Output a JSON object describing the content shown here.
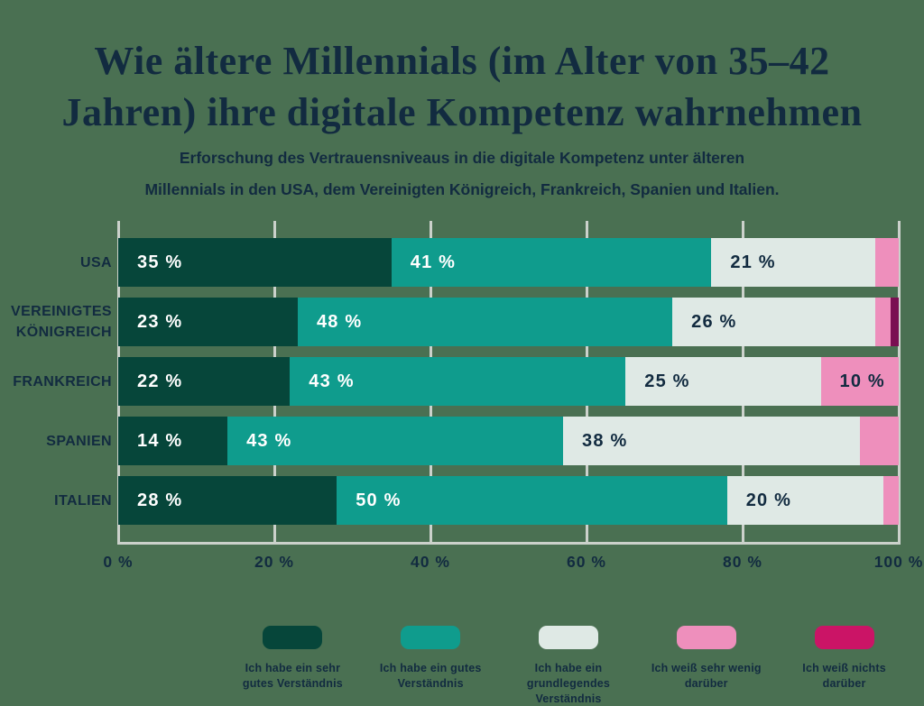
{
  "title": {
    "text": "Wie ältere Millennials (im Alter von 35–42 Jahren) ihre digitale Kompetenz wahrnehmen",
    "lines": [
      "Wie ältere Millennials (im Alter von 35–42",
      "Jahren) ihre digitale Kompetenz wahrnehmen"
    ]
  },
  "subtitle": {
    "text": "Erforschung des Vertrauensniveaus in die digitale Kompetenz unter älteren Millennials in den USA, dem Vereinigten Königreich, Frankreich, Spanien und Italien.",
    "lines": [
      "Erforschung des Vertrauensniveaus in die digitale Kompetenz unter älteren",
      "Millennials in den USA, dem Vereinigten Königreich, Frankreich, Spanien und Italien."
    ]
  },
  "colors": {
    "background": "#4A7052",
    "text": "#122B40",
    "gridline": "#CBD1CB"
  },
  "chart_data": {
    "type": "bar",
    "orientation": "horizontal",
    "stacked": true,
    "unit": "%",
    "grid": true,
    "legend_position": "bottom",
    "xlim": [
      0,
      100
    ],
    "x_ticks": [
      {
        "value": 0,
        "label": "0 %"
      },
      {
        "value": 20,
        "label": "20 %"
      },
      {
        "value": 40,
        "label": "40 %"
      },
      {
        "value": 60,
        "label": "60 %"
      },
      {
        "value": 80,
        "label": "80 %"
      },
      {
        "value": 100,
        "label": "100 %"
      }
    ],
    "categories": [
      "USA",
      "VEREINIGTES KÖNIGREICH",
      "FRANKREICH",
      "SPANIEN",
      "ITALIEN"
    ],
    "series": [
      {
        "name": "Ich habe ein sehr gutes Verständnis",
        "legend_lines": [
          "Ich habe ein sehr",
          "gutes Verständnis"
        ],
        "color": "#06463A",
        "legend_color": "#06463A",
        "label_color": "#FFFFFF",
        "values": [
          35,
          23,
          22,
          14,
          28
        ]
      },
      {
        "name": "Ich habe ein gutes Verständnis",
        "legend_lines": [
          "Ich habe ein gutes",
          "Verständnis"
        ],
        "color": "#0F9C8D",
        "legend_color": "#0F9C8D",
        "label_color": "#FFFFFF",
        "values": [
          41,
          48,
          43,
          43,
          50
        ]
      },
      {
        "name": "Ich habe ein grundlegendes Verständnis",
        "legend_lines": [
          "Ich habe ein",
          "grundlegendes",
          "Verständnis"
        ],
        "color": "#DFE9E5",
        "legend_color": "#DFE9E5",
        "label_color": "#122B40",
        "values": [
          21,
          26,
          25,
          38,
          20
        ]
      },
      {
        "name": "Ich weiß sehr wenig darüber",
        "legend_lines": [
          "Ich weiß sehr wenig",
          "darüber"
        ],
        "color": "#EE8FBC",
        "legend_color": "#EE8FBC",
        "label_color": "#122B40",
        "values": [
          3,
          2,
          10,
          5,
          2
        ]
      },
      {
        "name": "Ich weiß nichts darüber",
        "legend_lines": [
          "Ich weiß nichts",
          "darüber"
        ],
        "color": "#7A0F52",
        "legend_color": "#CB1466",
        "label_color": "#FFFFFF",
        "values": [
          0,
          1,
          0,
          0,
          0
        ]
      }
    ],
    "value_label_min": 10,
    "value_label_suffix": " %"
  }
}
